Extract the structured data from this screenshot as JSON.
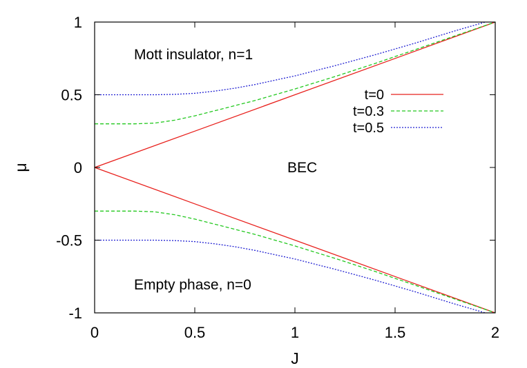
{
  "chart_data": {
    "type": "line",
    "xlabel": "J",
    "ylabel": "μ",
    "xlim": [
      0,
      2
    ],
    "ylim": [
      -1,
      1
    ],
    "xticks": [
      "0",
      "0.5",
      "1",
      "1.5",
      "2"
    ],
    "yticks": [
      "1",
      "0.5",
      "0",
      "-0.5",
      "-1"
    ],
    "grid": false,
    "legend_position": "top-right",
    "annotations": {
      "mott": "Mott insulator, n=1",
      "bec": "BEC",
      "empty": "Empty phase, n=0"
    },
    "series": [
      {
        "name": "t=0",
        "color": "#e8201c",
        "dash": "solid",
        "upper": {
          "x": [
            0,
            0.5,
            1,
            1.5,
            2
          ],
          "y": [
            0,
            0.25,
            0.5,
            0.75,
            1.0
          ]
        },
        "lower": {
          "x": [
            0,
            0.5,
            1,
            1.5,
            2
          ],
          "y": [
            0,
            -0.25,
            -0.5,
            -0.75,
            -1.0
          ]
        }
      },
      {
        "name": "t=0.3",
        "color": "#22c81e",
        "dash": "dashed",
        "upper": {
          "x": [
            0,
            0.1,
            0.2,
            0.3,
            0.4,
            0.5,
            0.6,
            0.7,
            0.8,
            0.9,
            1.0,
            1.2,
            1.4,
            1.6,
            1.8,
            2.0
          ],
          "y": [
            0.3,
            0.3,
            0.3,
            0.305,
            0.325,
            0.355,
            0.39,
            0.425,
            0.46,
            0.5,
            0.54,
            0.625,
            0.715,
            0.81,
            0.905,
            1.0
          ]
        },
        "lower": {
          "x": [
            0,
            0.1,
            0.2,
            0.3,
            0.4,
            0.5,
            0.6,
            0.7,
            0.8,
            0.9,
            1.0,
            1.2,
            1.4,
            1.6,
            1.8,
            2.0
          ],
          "y": [
            -0.3,
            -0.3,
            -0.3,
            -0.305,
            -0.325,
            -0.355,
            -0.39,
            -0.425,
            -0.46,
            -0.5,
            -0.54,
            -0.625,
            -0.715,
            -0.81,
            -0.905,
            -1.0
          ]
        }
      },
      {
        "name": "t=0.5",
        "color": "#1e1ed2",
        "dash": "dotted",
        "upper": {
          "x": [
            0,
            0.1,
            0.2,
            0.3,
            0.4,
            0.5,
            0.6,
            0.7,
            0.8,
            0.9,
            1.0,
            1.2,
            1.4,
            1.6,
            1.8,
            2.0
          ],
          "y": [
            0.5,
            0.5,
            0.5,
            0.5,
            0.503,
            0.51,
            0.525,
            0.545,
            0.57,
            0.6,
            0.63,
            0.7,
            0.775,
            0.855,
            0.94,
            1.02
          ]
        },
        "lower": {
          "x": [
            0,
            0.1,
            0.2,
            0.3,
            0.4,
            0.5,
            0.6,
            0.7,
            0.8,
            0.9,
            1.0,
            1.2,
            1.4,
            1.6,
            1.8,
            2.0
          ],
          "y": [
            -0.5,
            -0.5,
            -0.5,
            -0.5,
            -0.503,
            -0.51,
            -0.525,
            -0.545,
            -0.57,
            -0.6,
            -0.63,
            -0.7,
            -0.775,
            -0.855,
            -0.94,
            -1.02
          ]
        }
      }
    ]
  }
}
